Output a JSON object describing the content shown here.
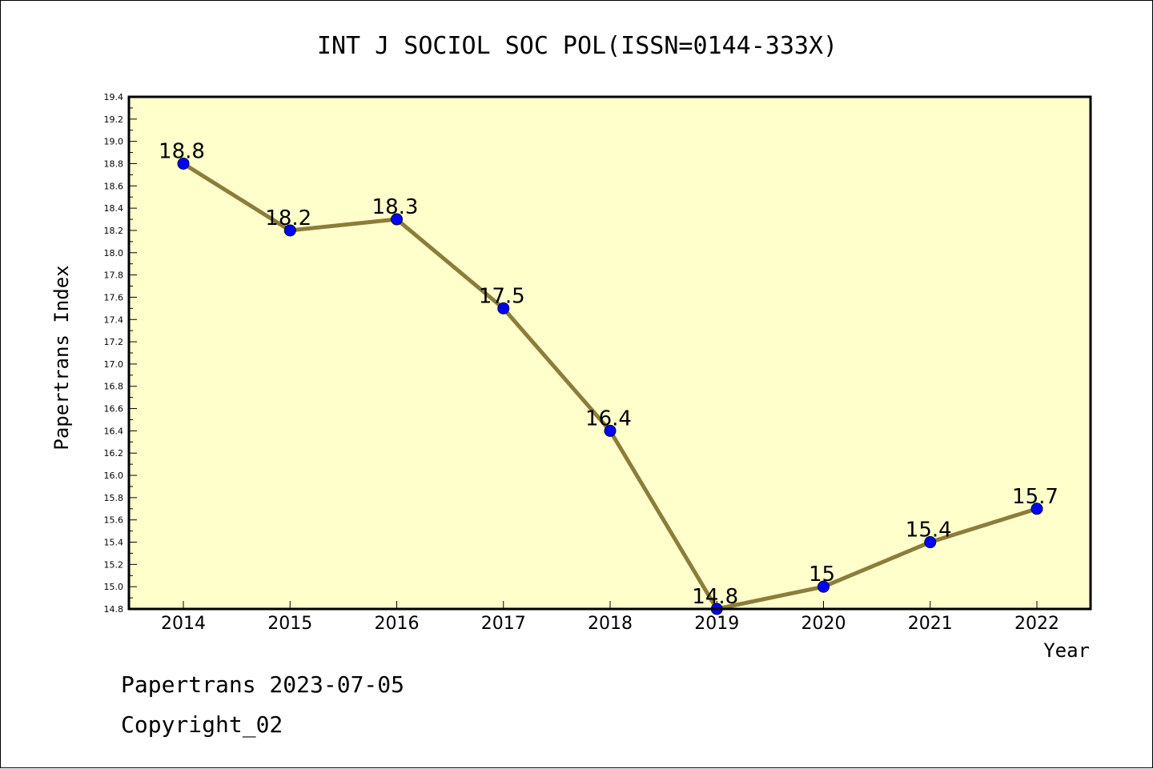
{
  "chart_data": {
    "type": "line",
    "title": "INT J SOCIOL SOC POL(ISSN=0144-333X)",
    "xlabel": "Year",
    "ylabel": "Papertrans Index",
    "categories": [
      "2014",
      "2015",
      "2016",
      "2017",
      "2018",
      "2019",
      "2020",
      "2021",
      "2022"
    ],
    "series": [
      {
        "values": [
          18.8,
          18.2,
          18.3,
          17.5,
          16.4,
          14.8,
          15.0,
          15.4,
          15.7
        ],
        "labels": [
          "18.8",
          "18.2",
          "18.3",
          "17.5",
          "16.4",
          "14.8",
          "15",
          "15.4",
          "15.7"
        ]
      }
    ],
    "ylim": [
      14.8,
      19.4
    ],
    "yticks": [
      "14.8",
      "15.0",
      "15.2",
      "15.4",
      "15.6",
      "15.8",
      "16.0",
      "16.2",
      "16.4",
      "16.6",
      "16.8",
      "17.0",
      "17.2",
      "17.4",
      "17.6",
      "17.8",
      "18.0",
      "18.2",
      "18.4",
      "18.6",
      "18.8",
      "19.0",
      "19.2",
      "19.4"
    ],
    "grid": false,
    "colors": {
      "plot_background": "#ffffcc",
      "line": "#8b7d3a",
      "marker": "#0000ff"
    }
  },
  "footer": {
    "line1": "Papertrans 2023-07-05",
    "line2": "Copyright_02"
  }
}
